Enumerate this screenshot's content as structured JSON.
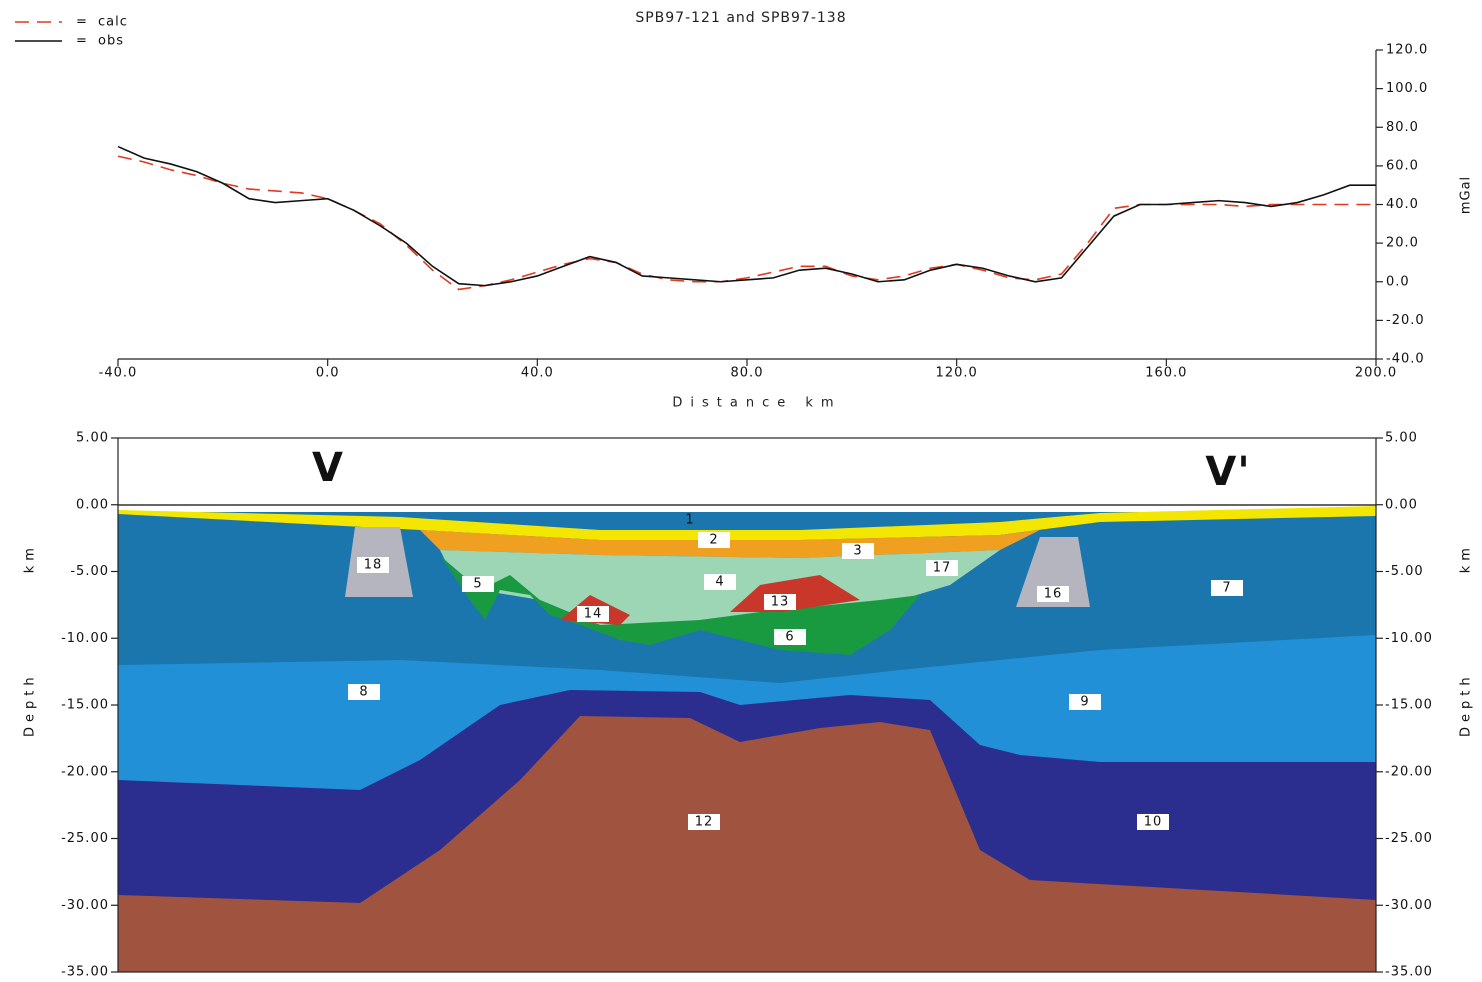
{
  "chart_data": [
    {
      "type": "line",
      "title": "SPB97-121 and SPB97-138",
      "xlabel": "Distance km",
      "ylabel": "mGal",
      "legend_separator": "=",
      "xlim": [
        -40,
        200
      ],
      "xticks": [
        {
          "value": -40,
          "label": "-40.0"
        },
        {
          "value": 0,
          "label": "0.0"
        },
        {
          "value": 40,
          "label": "40.0"
        },
        {
          "value": 80,
          "label": "80.0"
        },
        {
          "value": 120,
          "label": "120.0"
        },
        {
          "value": 160,
          "label": "160.0"
        },
        {
          "value": 200,
          "label": "200.0"
        }
      ],
      "ylim": [
        -40,
        120
      ],
      "yticks": [
        {
          "value": -40,
          "label": "-40.0"
        },
        {
          "value": -20,
          "label": "-20.0"
        },
        {
          "value": 0,
          "label": "0.0"
        },
        {
          "value": 20,
          "label": "20.0"
        },
        {
          "value": 40,
          "label": "40.0"
        },
        {
          "value": 60,
          "label": "60.0"
        },
        {
          "value": 80,
          "label": "80.0"
        },
        {
          "value": 100,
          "label": "100.0"
        },
        {
          "value": 120,
          "label": "120.0"
        }
      ],
      "x": [
        -40,
        -35,
        -30,
        -25,
        -20,
        -15,
        -10,
        -5,
        0,
        5,
        10,
        15,
        20,
        25,
        30,
        35,
        40,
        45,
        50,
        55,
        60,
        65,
        70,
        75,
        80,
        85,
        90,
        95,
        100,
        105,
        110,
        115,
        120,
        125,
        130,
        135,
        140,
        145,
        150,
        155,
        160,
        165,
        170,
        175,
        180,
        185,
        190,
        195,
        200
      ],
      "series": [
        {
          "name": "calc",
          "color": "#e03a20",
          "dashed": true,
          "values": [
            65,
            62,
            58,
            55,
            51,
            48,
            47,
            46,
            43,
            37,
            30,
            19,
            6,
            -4,
            -2,
            1,
            5,
            9,
            12,
            10,
            4,
            1,
            0,
            0,
            2,
            5,
            8,
            8,
            3,
            1,
            3,
            7,
            9,
            6,
            2,
            1,
            4,
            20,
            38,
            40,
            40,
            40,
            40,
            39,
            40,
            40,
            40,
            40,
            40
          ]
        },
        {
          "name": "obs",
          "color": "#111111",
          "dashed": false,
          "values": [
            70,
            64,
            61,
            57,
            51,
            43,
            41,
            42,
            43,
            37,
            29,
            20,
            8,
            -1,
            -2,
            0,
            3,
            8,
            13,
            10,
            3,
            2,
            1,
            0,
            1,
            2,
            6,
            7,
            4,
            0,
            1,
            6,
            9,
            7,
            3,
            0,
            2,
            18,
            34,
            40,
            40,
            41,
            42,
            41,
            39,
            41,
            45,
            50,
            50
          ]
        }
      ]
    },
    {
      "type": "cross-section",
      "ylabel": "Depth km",
      "xlim": [
        -40,
        200
      ],
      "ylim": [
        -35,
        5
      ],
      "yticks": [
        {
          "value": 5,
          "label": "5.00"
        },
        {
          "value": 0,
          "label": "0.00"
        },
        {
          "value": -5,
          "label": "-5.00"
        },
        {
          "value": -10,
          "label": "-10.00"
        },
        {
          "value": -15,
          "label": "-15.00"
        },
        {
          "value": -20,
          "label": "-20.00"
        },
        {
          "value": -25,
          "label": "-25.00"
        },
        {
          "value": -30,
          "label": "-30.00"
        },
        {
          "value": -35,
          "label": "-35.00"
        }
      ],
      "annotations": [
        "V",
        "V'"
      ],
      "bodies": [
        "1",
        "2",
        "3",
        "4",
        "5",
        "6",
        "7",
        "8",
        "9",
        "10",
        "12",
        "13",
        "14",
        "16",
        "17",
        "18"
      ]
    }
  ]
}
